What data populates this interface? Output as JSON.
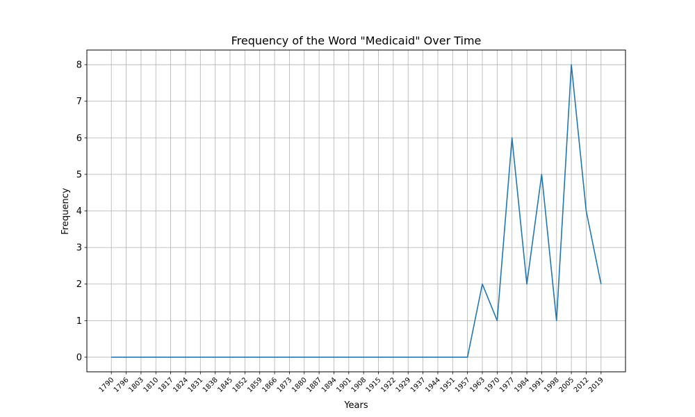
{
  "chart_data": {
    "type": "line",
    "title": "Frequency of the Word \"Medicaid\" Over Time",
    "xlabel": "Years",
    "ylabel": "Frequency",
    "categories": [
      "1790",
      "1796",
      "1803",
      "1810",
      "1817",
      "1824",
      "1831",
      "1838",
      "1845",
      "1852",
      "1859",
      "1866",
      "1873",
      "1880",
      "1887",
      "1894",
      "1901",
      "1908",
      "1915",
      "1922",
      "1929",
      "1937",
      "1944",
      "1951",
      "1957",
      "1963",
      "1970",
      "1977",
      "1984",
      "1991",
      "1998",
      "2005",
      "2012",
      "2019"
    ],
    "series": [
      {
        "values": [
          0,
          0,
          0,
          0,
          0,
          0,
          0,
          0,
          0,
          0,
          0,
          0,
          0,
          0,
          0,
          0,
          0,
          0,
          0,
          0,
          0,
          0,
          0,
          0,
          0,
          2,
          1,
          6,
          2,
          5,
          1,
          8,
          4,
          2
        ]
      }
    ],
    "yticks": [
      "0",
      "1",
      "2",
      "3",
      "4",
      "5",
      "6",
      "7",
      "8"
    ],
    "ylim": [
      -0.4,
      8.4
    ],
    "grid": true,
    "line_color": "#1f77b4"
  }
}
